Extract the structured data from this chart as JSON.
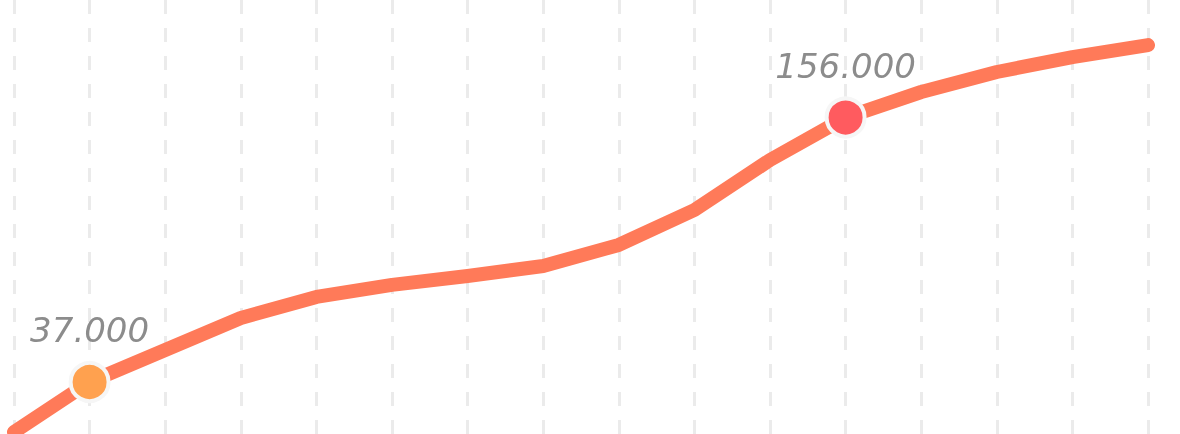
{
  "chart_data": {
    "type": "line",
    "categories": [
      null,
      null,
      null,
      null,
      null,
      null,
      null,
      null,
      null,
      null,
      null,
      null,
      null,
      null,
      null,
      null
    ],
    "series": [
      {
        "color": "#ff7a59",
        "colors": [
          "#ffa64c",
          "#ffa14f",
          "#ff9b51",
          "#ff9553",
          "#ff9054",
          "#ff8b55",
          "#ff8656",
          "#ff8158",
          "#ff7a59",
          "#ff715b",
          "#ff665d",
          "#ff5b5f",
          "#ff5660",
          "#ff5361",
          "#ff5062",
          "#ff4e63"
        ],
        "values": [
          14500,
          37000,
          51400,
          65800,
          75300,
          80700,
          84700,
          89200,
          98700,
          114400,
          136900,
          156000,
          167500,
          176500,
          183200,
          188600
        ],
        "value_labels": [
          null,
          "37.000",
          null,
          null,
          null,
          null,
          null,
          null,
          null,
          null,
          null,
          "156.000",
          null,
          null,
          null,
          null
        ]
      }
    ],
    "ylim": [
      13600,
      208900
    ],
    "tick_labels": false,
    "grid": "x",
    "line_style": "solid"
  }
}
